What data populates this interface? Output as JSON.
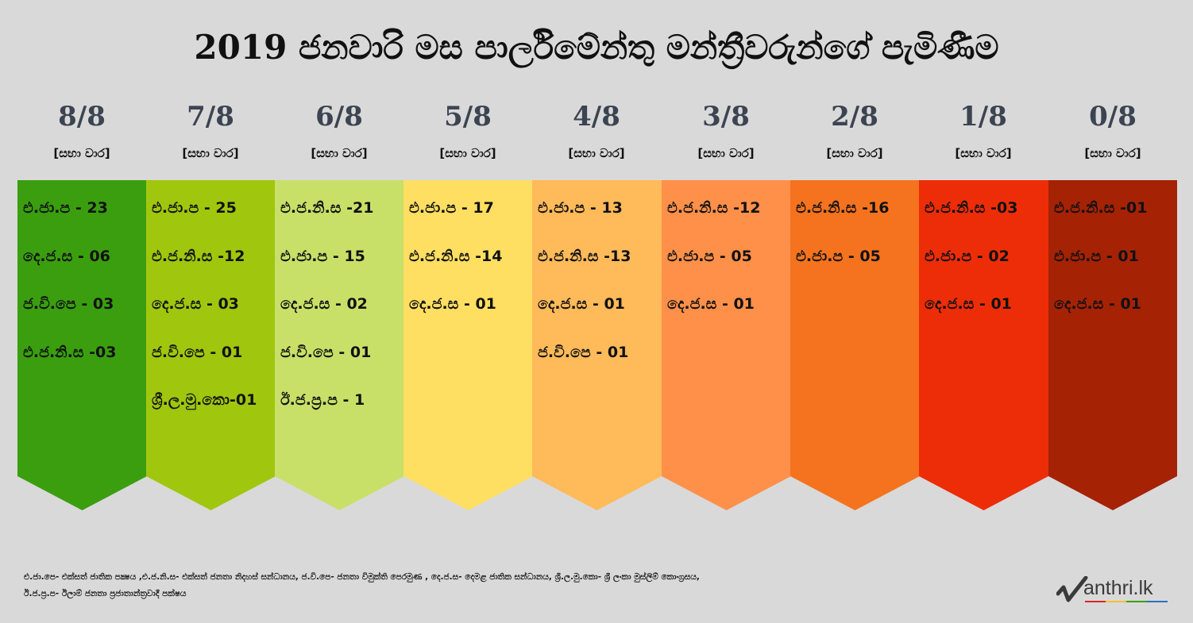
{
  "title": "2019 ජනවාරි මස පාර්ලිමේන්තු මන්ත්‍රීවරුන්ගේ පැමිණීම",
  "columns": [
    {
      "fraction": "8/8",
      "label": "[සභා වාර]",
      "color": "#3a9e0f",
      "entries": [
        "එ.ජා.ප - 23",
        "දෙ.ජ.ස  - 06",
        "ජ.වි.පෙ - 03",
        "එ.ජ.නි.ස -03"
      ]
    },
    {
      "fraction": "7/8",
      "label": "[සභා වාර]",
      "color": "#a0c60e",
      "entries": [
        "එ.ජා.ප - 25",
        "එ.ජ.නි.ස -12",
        "දෙ.ජ.ස  - 03",
        "ජ.වි.පෙ - 01",
        "ශ්‍රී.ල.මු.කො-01"
      ]
    },
    {
      "fraction": "6/8",
      "label": "[සභා වාර]",
      "color": "#c8e068",
      "entries": [
        "එ.ජ.නි.ස -21",
        "එ.ජා.ප - 15",
        "දෙ.ජ.ස  - 02",
        "ජ.වි.පෙ - 01",
        "ඊ.ජ.ප්‍ර.ප - 1"
      ]
    },
    {
      "fraction": "5/8",
      "label": "[සභා වාර]",
      "color": "#ffdf62",
      "entries": [
        "එ.ජා.ප - 17",
        "එ.ජ.නි.ස -14",
        "දෙ.ජ.ස  - 01"
      ]
    },
    {
      "fraction": "4/8",
      "label": "[සභා වාර]",
      "color": "#ffba5a",
      "entries": [
        "එ.ජා.ප - 13",
        "එ.ජ.නි.ස -13",
        "දෙ.ජ.ස  - 01",
        "ජ.වි.පෙ - 01"
      ]
    },
    {
      "fraction": "3/8",
      "label": "[සභා වාර]",
      "color": "#ff904a",
      "entries": [
        "එ.ජ.නි.ස -12",
        "එ.ජා.ප - 05",
        "දෙ.ජ.ස  - 01"
      ]
    },
    {
      "fraction": "2/8",
      "label": "[සභා වාර]",
      "color": "#f5731f",
      "entries": [
        "එ.ජ.නි.ස -16",
        "එ.ජා.ප - 05"
      ]
    },
    {
      "fraction": "1/8",
      "label": "[සභා වාර]",
      "color": "#ec2d08",
      "entries": [
        "එ.ජ.නි.ස -03",
        "එ.ජා.ප - 02",
        "දෙ.ජ.ස  - 01"
      ]
    },
    {
      "fraction": "0/8",
      "label": "[සභා වාර]",
      "color": "#a52205",
      "entries": [
        "එ.ජ.නි.ස -01",
        "එ.ජා.ප - 01",
        "දෙ.ජ.ස  - 01"
      ]
    }
  ],
  "legend": {
    "line1": "එ.ජා.පෙ- එක්සත් ජාතික පක්‍ෂය ,එ.ජ.නි.ස- එක්සත් ජනතා නිදහස් සන්ධානය, ජ.වි.පෙ- ජනතා විමුක්ති පෙරමුණ , දෙ.ජ.ස- දෙමළ ජාතික සන්ධානය, ශ්‍රී.ල.මු.කො- ශ්‍රී ලංකා මුස්ලිම් කොංග්‍රසය,",
    "line2": "ඊ.ජ.ප්‍ර.ප- ඊලාම් ජනතා ප්‍රජාතාන්ත්‍රවාදී පක්ෂය"
  },
  "logo": {
    "text": "anthri.lk",
    "mark": "check-m-icon",
    "bar_colors": [
      "#d8262b",
      "#f2c230",
      "#3a9e0f",
      "#2f6fc0"
    ]
  }
}
